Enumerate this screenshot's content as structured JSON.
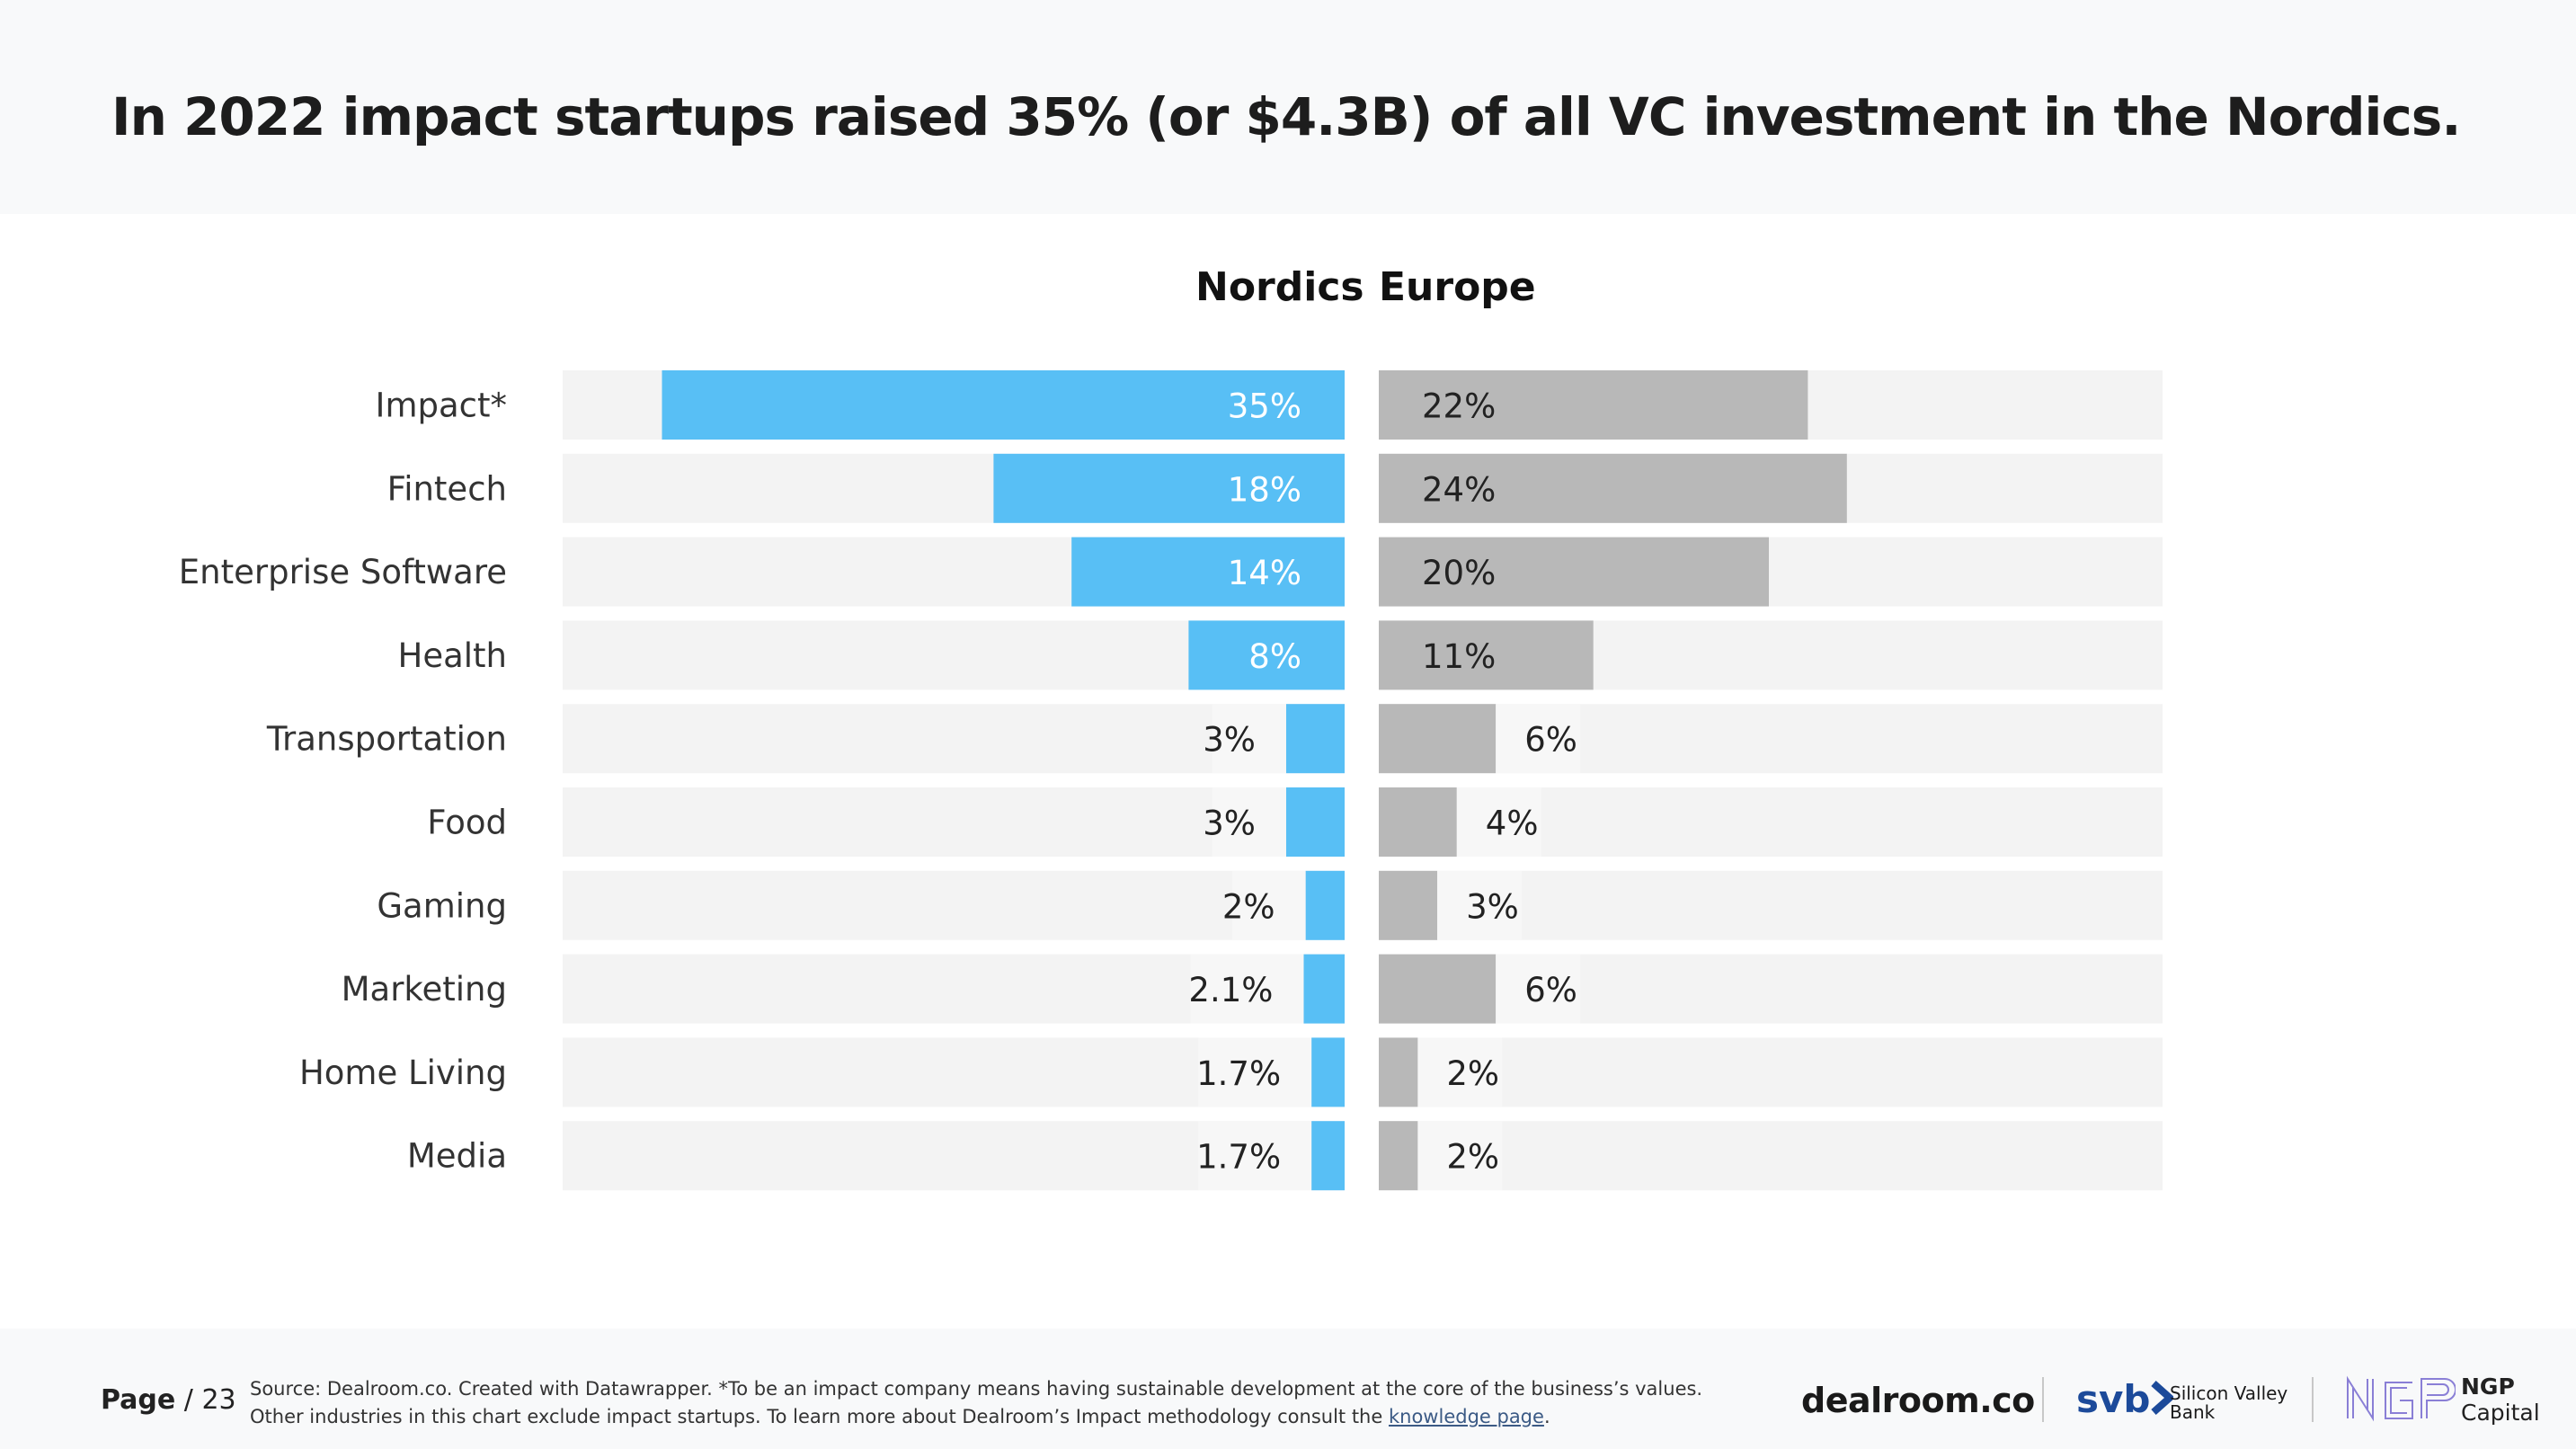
{
  "page_title": "In 2022 impact startups raised 35% (or $4.3B) of all VC investment in the Nordics.",
  "colors": {
    "nordics": "#58bff5",
    "europe": "#b8b8b8",
    "track": "#f3f3f3"
  },
  "chart_data": {
    "type": "bar",
    "orientation": "horizontal-butterfly",
    "categories": [
      "Impact*",
      "Fintech",
      "Enterprise Software",
      "Health",
      "Transportation",
      "Food",
      "Gaming",
      "Marketing",
      "Home Living",
      "Media"
    ],
    "series": [
      {
        "name": "Nordics",
        "values": [
          35,
          18,
          14,
          8,
          3,
          3,
          2,
          2.1,
          1.7,
          1.7
        ],
        "labels": [
          "35%",
          "18%",
          "14%",
          "8%",
          "3%",
          "3%",
          "2%",
          "2.1%",
          "1.7%",
          "1.7%"
        ]
      },
      {
        "name": "Europe",
        "values": [
          22,
          24,
          20,
          11,
          6,
          4,
          3,
          6,
          2,
          2
        ],
        "labels": [
          "22%",
          "24%",
          "20%",
          "11%",
          "6%",
          "4%",
          "3%",
          "6%",
          "2%",
          "2%"
        ]
      }
    ],
    "xlim": [
      0,
      40
    ]
  },
  "footer": {
    "page_label": "Page",
    "page_number": "/ 23",
    "source_line1": "Source: Dealroom.co. Created with Datawrapper. *To be an impact company means having sustainable development at the core of the business’s values.",
    "source_line2": "Other industries in this chart  exclude impact startups. To learn more about Dealroom’s Impact methodology consult the",
    "source_link": "knowledge page",
    "source_end": "."
  },
  "logos": {
    "dealroom": "dealroom.co",
    "svb": "svb",
    "svb_line1": "Silicon Valley",
    "svb_line2": "Bank",
    "ngp_line1": "NGP",
    "ngp_line2": "Capital"
  }
}
